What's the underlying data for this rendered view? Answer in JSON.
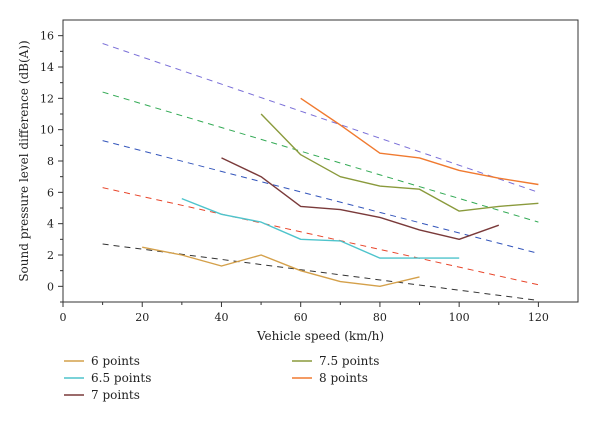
{
  "chart_data": {
    "type": "line",
    "title": "",
    "xlabel": "Vehicle speed (km/h)",
    "ylabel": "Sound pressure level difference (dB(A))",
    "xlim": [
      0,
      130
    ],
    "ylim": [
      -1,
      17
    ],
    "xticks": [
      0,
      20,
      40,
      60,
      80,
      100,
      120
    ],
    "yticks": [
      0,
      2,
      4,
      6,
      8,
      10,
      12,
      14,
      16
    ],
    "grid": false,
    "legend_position": "bottom",
    "series": [
      {
        "name": "6 points",
        "color": "#D4A04A",
        "x": [
          20,
          30,
          40,
          50,
          60,
          70,
          80,
          90
        ],
        "y": [
          2.5,
          2.0,
          1.3,
          2.0,
          1.0,
          0.3,
          0.0,
          0.6
        ],
        "fit": {
          "x": [
            10,
            120
          ],
          "y": [
            2.7,
            -0.9
          ]
        }
      },
      {
        "name": "6.5 points",
        "color": "#4EC4CC",
        "x": [
          30,
          40,
          50,
          60,
          70,
          80,
          90,
          100
        ],
        "y": [
          5.6,
          4.6,
          4.1,
          3.0,
          2.9,
          1.8,
          1.8,
          1.8
        ],
        "fit": {
          "x": [
            10,
            120
          ],
          "y": [
            6.3,
            0.1
          ]
        }
      },
      {
        "name": "7 points",
        "color": "#7A3A3A",
        "x": [
          40,
          50,
          60,
          70,
          80,
          90,
          100,
          110
        ],
        "y": [
          8.2,
          7.0,
          5.1,
          4.9,
          4.4,
          3.6,
          3.0,
          3.9
        ],
        "fit": {
          "x": [
            10,
            120
          ],
          "y": [
            9.3,
            2.1
          ]
        }
      },
      {
        "name": "7.5 points",
        "color": "#8A9A3C",
        "x": [
          50,
          60,
          70,
          80,
          90,
          100,
          110,
          120
        ],
        "y": [
          11.0,
          8.4,
          7.0,
          6.4,
          6.2,
          4.8,
          5.1,
          5.3
        ],
        "fit": {
          "x": [
            10,
            120
          ],
          "y": [
            12.4,
            4.1
          ]
        }
      },
      {
        "name": "8 points",
        "color": "#F07A30",
        "x": [
          60,
          70,
          80,
          90,
          100,
          110,
          120
        ],
        "y": [
          12.0,
          10.3,
          8.5,
          8.2,
          7.4,
          6.9,
          6.5
        ],
        "fit": {
          "x": [
            10,
            120
          ],
          "y": [
            15.5,
            6.0
          ]
        }
      }
    ],
    "fit_colors": [
      "#333333",
      "#E8452A",
      "#3355BB",
      "#33AA55",
      "#7A6FD8"
    ]
  }
}
